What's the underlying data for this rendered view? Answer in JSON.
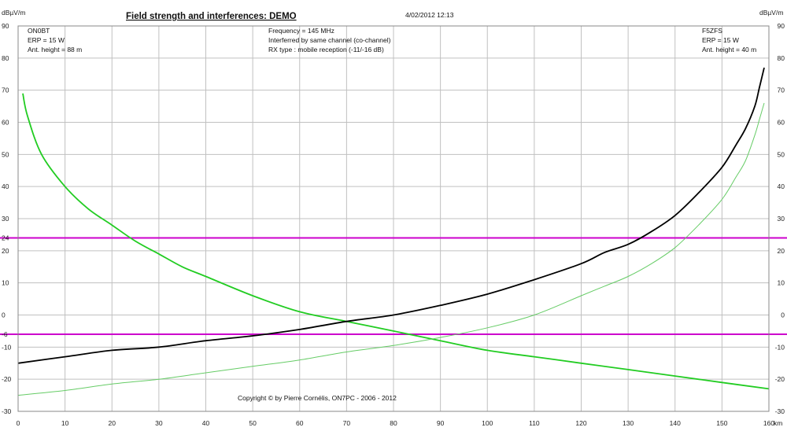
{
  "header": {
    "title": "Field strength and interferences: DEMO",
    "timestamp": "4/02/2012 12:13",
    "y_unit_left": "dBµV/m",
    "y_unit_right": "dBµV/m",
    "x_unit": "km"
  },
  "left_station": {
    "callsign": "ON0BT",
    "erp": "ERP = 15 W",
    "ant_height": "Ant. height = 88 m"
  },
  "right_station": {
    "callsign": "F5ZFS",
    "erp": "ERP = 15 W",
    "ant_height": "Ant. height = 40 m"
  },
  "center_info": {
    "frequency": "Frequency = 145 MHz",
    "interference": "Interferred by same channel (co-channel)",
    "rx_type": "RX type : mobile reception (-11/-16 dB)"
  },
  "copyright": "Copyright © by Pierre Cornélis, ON7PC - 2006 - 2012",
  "colors": {
    "field_left": "#22cc22",
    "interf_left": "#66cc66",
    "field_right": "#000000",
    "threshold": "#cc00cc",
    "grid": "#c0c0c0",
    "frame": "#888888"
  },
  "chart_data": {
    "type": "line",
    "title": "Field strength and interferences: DEMO",
    "xlabel": "km",
    "ylabel": "dBµV/m",
    "xlim": [
      0,
      160
    ],
    "ylim": [
      -30,
      90
    ],
    "x_ticks": [
      0,
      10,
      20,
      30,
      40,
      50,
      60,
      70,
      80,
      90,
      100,
      110,
      120,
      130,
      140,
      150,
      160
    ],
    "y_ticks_left": [
      "90",
      "80",
      "70",
      "60",
      "50",
      "40",
      "30",
      "24",
      "20",
      "10",
      "0",
      "-6",
      "-10",
      "-20",
      "-30"
    ],
    "y_ticks_left_values": [
      90,
      80,
      70,
      60,
      50,
      40,
      30,
      24,
      20,
      10,
      0,
      -6,
      -10,
      -20,
      -30
    ],
    "y_ticks_right": [
      "90",
      "80",
      "70",
      "60",
      "50",
      "40",
      "30",
      "20",
      "10",
      "0",
      "-10",
      "-20",
      "-30"
    ],
    "y_ticks_right_values": [
      90,
      80,
      70,
      60,
      50,
      40,
      30,
      20,
      10,
      0,
      -10,
      -20,
      -30
    ],
    "grid": true,
    "hlines": [
      {
        "y": 24,
        "color": "#cc00cc"
      },
      {
        "y": -6,
        "color": "#cc00cc"
      }
    ],
    "series": [
      {
        "color": "#22cc22",
        "width": 1.8,
        "x": [
          1,
          2,
          5,
          10,
          15,
          20,
          25,
          30,
          35,
          40,
          50,
          60,
          70,
          80,
          90,
          100,
          110,
          120,
          130,
          140,
          150,
          160
        ],
        "y": [
          69,
          62,
          50,
          40,
          33,
          28,
          23,
          19,
          15,
          12,
          6,
          1,
          -2,
          -5,
          -8,
          -11,
          -13,
          -15,
          -17,
          -19,
          -21,
          -23
        ]
      },
      {
        "color": "#000000",
        "width": 1.8,
        "x": [
          0,
          10,
          20,
          30,
          40,
          50,
          60,
          70,
          80,
          90,
          100,
          110,
          120,
          125,
          130,
          135,
          140,
          145,
          150,
          153,
          155,
          157,
          158,
          159
        ],
        "y": [
          -15,
          -13,
          -11,
          -10,
          -8,
          -6.5,
          -4.5,
          -2,
          0,
          3,
          6.5,
          11,
          16,
          19.5,
          22,
          26,
          31,
          38,
          46,
          53,
          58,
          65,
          71,
          77
        ]
      },
      {
        "color": "#66cc66",
        "width": 1,
        "x": [
          0,
          10,
          20,
          30,
          40,
          50,
          60,
          70,
          80,
          90,
          100,
          110,
          120,
          125,
          130,
          135,
          140,
          145,
          150,
          153,
          155,
          157,
          158,
          159
        ],
        "y": [
          -25,
          -23.5,
          -21.5,
          -20,
          -18,
          -16,
          -14,
          -11.5,
          -9.5,
          -7,
          -4,
          0,
          6,
          9,
          12,
          16,
          21,
          28,
          36,
          43,
          48,
          56,
          61,
          66
        ]
      }
    ]
  }
}
